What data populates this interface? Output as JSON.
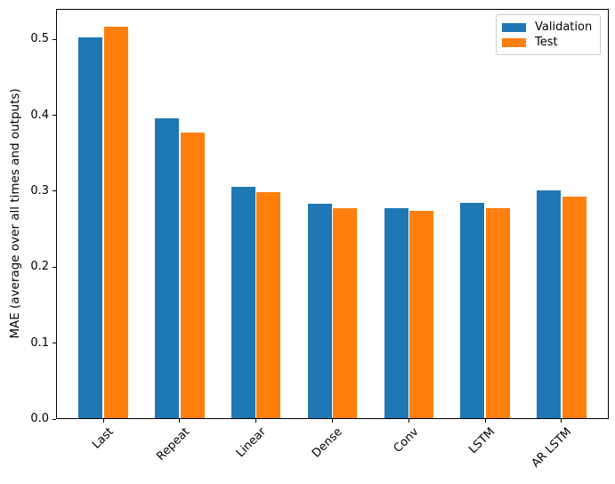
{
  "chart_data": {
    "type": "bar",
    "title": "",
    "xlabel": "",
    "ylabel": "MAE (average over all times and outputs)",
    "categories": [
      "Last",
      "Repeat",
      "Linear",
      "Dense",
      "Conv",
      "LSTM",
      "AR LSTM"
    ],
    "series": [
      {
        "name": "Validation",
        "color": "#1f77b4",
        "values": [
          0.501,
          0.395,
          0.305,
          0.282,
          0.277,
          0.284,
          0.3
        ]
      },
      {
        "name": "Test",
        "color": "#ff7f0e",
        "values": [
          0.515,
          0.376,
          0.297,
          0.276,
          0.273,
          0.277,
          0.292
        ]
      }
    ],
    "ylim": [
      0,
      0.54
    ],
    "xlim": [
      -0.62,
      6.62
    ],
    "yticks": [
      0.0,
      0.1,
      0.2,
      0.3,
      0.4,
      0.5
    ],
    "x_tick_rotation": 45,
    "grid": false,
    "legend": {
      "position": "upper right",
      "entries": [
        "Validation",
        "Test"
      ]
    }
  }
}
